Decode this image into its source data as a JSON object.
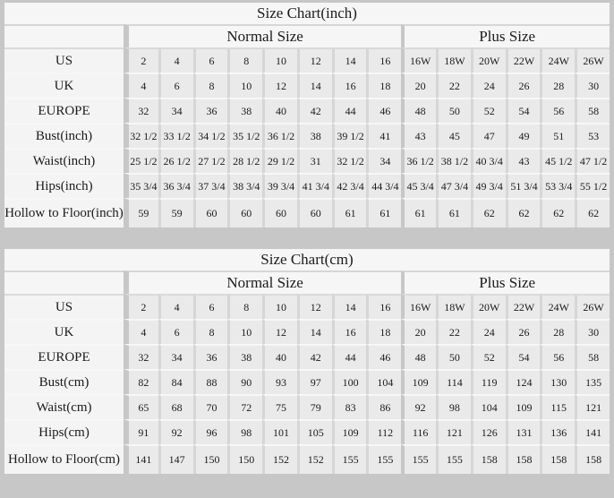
{
  "colors": {
    "page_background": "#c7c7c7",
    "header_background": "#f6f6f6",
    "label_background": "#f4f4f4",
    "cell_background": "#eaeaea",
    "text": "#1b1b1b"
  },
  "tables": [
    {
      "title": "Size Chart(inch)",
      "group_headers": [
        {
          "label": "Normal Size",
          "span": 8
        },
        {
          "label": "Plus Size",
          "span": 6
        }
      ],
      "rows": [
        {
          "label": "US",
          "values": [
            "2",
            "4",
            "6",
            "8",
            "10",
            "12",
            "14",
            "16",
            "16W",
            "18W",
            "20W",
            "22W",
            "24W",
            "26W"
          ]
        },
        {
          "label": "UK",
          "values": [
            "4",
            "6",
            "8",
            "10",
            "12",
            "14",
            "16",
            "18",
            "20",
            "22",
            "24",
            "26",
            "28",
            "30"
          ]
        },
        {
          "label": "EUROPE",
          "values": [
            "32",
            "34",
            "36",
            "38",
            "40",
            "42",
            "44",
            "46",
            "48",
            "50",
            "52",
            "54",
            "56",
            "58"
          ]
        },
        {
          "label": "Bust(inch)",
          "values": [
            "32 1/2",
            "33 1/2",
            "34 1/2",
            "35 1/2",
            "36 1/2",
            "38",
            "39 1/2",
            "41",
            "43",
            "45",
            "47",
            "49",
            "51",
            "53"
          ]
        },
        {
          "label": "Waist(inch)",
          "values": [
            "25 1/2",
            "26 1/2",
            "27 1/2",
            "28 1/2",
            "29 1/2",
            "31",
            "32 1/2",
            "34",
            "36 1/2",
            "38 1/2",
            "40 3/4",
            "43",
            "45 1/2",
            "47 1/2"
          ]
        },
        {
          "label": "Hips(inch)",
          "values": [
            "35 3/4",
            "36 3/4",
            "37 3/4",
            "38 3/4",
            "39 3/4",
            "41 3/4",
            "42 3/4",
            "44 3/4",
            "45 3/4",
            "47 3/4",
            "49 3/4",
            "51 3/4",
            "53 3/4",
            "55 1/2"
          ]
        },
        {
          "label": "Hollow to Floor(inch)",
          "values": [
            "59",
            "59",
            "60",
            "60",
            "60",
            "60",
            "61",
            "61",
            "61",
            "61",
            "62",
            "62",
            "62",
            "62"
          ]
        }
      ]
    },
    {
      "title": "Size Chart(cm)",
      "group_headers": [
        {
          "label": "Normal Size",
          "span": 8
        },
        {
          "label": "Plus Size",
          "span": 6
        }
      ],
      "rows": [
        {
          "label": "US",
          "values": [
            "2",
            "4",
            "6",
            "8",
            "10",
            "12",
            "14",
            "16",
            "16W",
            "18W",
            "20W",
            "22W",
            "24W",
            "26W"
          ]
        },
        {
          "label": "UK",
          "values": [
            "4",
            "6",
            "8",
            "10",
            "12",
            "14",
            "16",
            "18",
            "20",
            "22",
            "24",
            "26",
            "28",
            "30"
          ]
        },
        {
          "label": "EUROPE",
          "values": [
            "32",
            "34",
            "36",
            "38",
            "40",
            "42",
            "44",
            "46",
            "48",
            "50",
            "52",
            "54",
            "56",
            "58"
          ]
        },
        {
          "label": "Bust(cm)",
          "values": [
            "82",
            "84",
            "88",
            "90",
            "93",
            "97",
            "100",
            "104",
            "109",
            "114",
            "119",
            "124",
            "130",
            "135"
          ]
        },
        {
          "label": "Waist(cm)",
          "values": [
            "65",
            "68",
            "70",
            "72",
            "75",
            "79",
            "83",
            "86",
            "92",
            "98",
            "104",
            "109",
            "115",
            "121"
          ]
        },
        {
          "label": "Hips(cm)",
          "values": [
            "91",
            "92",
            "96",
            "98",
            "101",
            "105",
            "109",
            "112",
            "116",
            "121",
            "126",
            "131",
            "136",
            "141"
          ]
        },
        {
          "label": "Hollow to Floor(cm)",
          "values": [
            "141",
            "147",
            "150",
            "150",
            "152",
            "152",
            "155",
            "155",
            "155",
            "155",
            "158",
            "158",
            "158",
            "158"
          ]
        }
      ]
    }
  ]
}
